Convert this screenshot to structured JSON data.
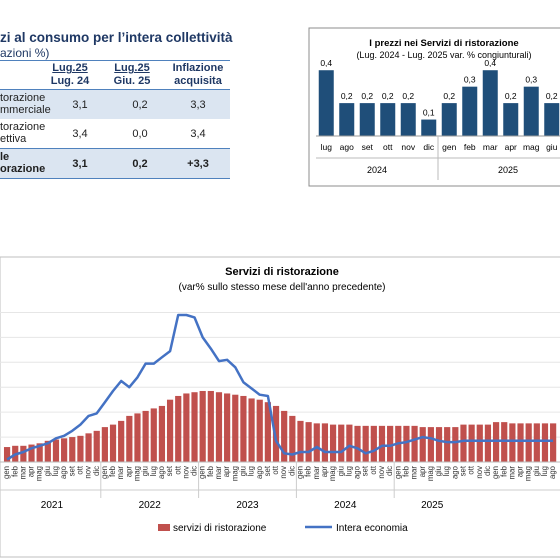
{
  "table": {
    "title": "zi al consumo per l’intera collettività",
    "subtitle": "azioni %)",
    "headers": [
      {
        "l1": "Lug.25",
        "l2": "Lug. 24"
      },
      {
        "l1": "Lug.25",
        "l2": "Giu. 25"
      },
      {
        "l1": "Inflazione",
        "l2": "acquisita"
      }
    ],
    "rows": [
      {
        "l1": "torazione",
        "l2": "mmerciale",
        "v1": "3,1",
        "v2": "0,2",
        "v3": "3,3"
      },
      {
        "l1": "torazione",
        "l2": "ettiva",
        "v1": "3,4",
        "v2": "0,0",
        "v3": "3,4"
      },
      {
        "l1": "le",
        "l2": "orazione",
        "v1": "3,1",
        "v2": "0,2",
        "v3": "+3,3"
      }
    ]
  },
  "chart_data": [
    {
      "type": "bar",
      "title": "I prezzi nei Servizi di ristorazione",
      "subtitle": "(Lug. 2024 - Lug. 2025 var. % congiunturali)",
      "categories": [
        "lug",
        "ago",
        "set",
        "ott",
        "nov",
        "dic",
        "gen",
        "feb",
        "mar",
        "apr",
        "mag",
        "giu"
      ],
      "values": [
        0.4,
        0.2,
        0.2,
        0.2,
        0.2,
        0.1,
        0.2,
        0.3,
        0.4,
        0.2,
        0.3,
        0.2
      ],
      "labels": [
        "0,4",
        "0,2",
        "0,2",
        "0,2",
        "0,2",
        "0,1",
        "0,2",
        "0,3",
        "0,4",
        "0,2",
        "0,3",
        "0,2"
      ],
      "year_labels": [
        "2024",
        "2025"
      ],
      "ylim": [
        0,
        0.45
      ],
      "color": "#1f4e79"
    },
    {
      "type": "bar+line",
      "title": "Servizi di ristorazione",
      "subtitle": "(var% sullo stesso mese dell'anno precedente)",
      "month_labels": [
        "gen",
        "feb",
        "mar",
        "apr",
        "mag",
        "giu",
        "lug",
        "ago",
        "set",
        "ott",
        "nov",
        "dic"
      ],
      "years": [
        "2021",
        "2022",
        "2023",
        "2024",
        "2025"
      ],
      "ylim": [
        0,
        13
      ],
      "grid": true,
      "legend_position": "bottom",
      "series": [
        {
          "name": "servizi di ristorazione",
          "kind": "bar",
          "color": "#c0504d",
          "values": [
            1.2,
            1.3,
            1.3,
            1.4,
            1.5,
            1.7,
            1.8,
            1.9,
            2.0,
            2.1,
            2.3,
            2.5,
            2.8,
            3.0,
            3.3,
            3.7,
            3.9,
            4.1,
            4.3,
            4.5,
            5.0,
            5.3,
            5.5,
            5.6,
            5.7,
            5.7,
            5.6,
            5.5,
            5.4,
            5.3,
            5.1,
            5.0,
            4.8,
            4.5,
            4.1,
            3.7,
            3.3,
            3.2,
            3.1,
            3.1,
            3.0,
            3.0,
            3.0,
            2.9,
            2.9,
            2.9,
            2.9,
            2.9,
            2.9,
            2.9,
            2.9,
            2.8,
            2.8,
            2.8,
            2.8,
            2.8,
            3.0,
            3.0,
            3.0,
            3.0,
            3.2,
            3.2,
            3.1,
            3.1,
            3.1,
            3.1,
            3.1,
            3.1
          ]
        },
        {
          "name": "Intera economia",
          "kind": "line",
          "color": "#4472c4",
          "values": [
            0.2,
            0.6,
            0.8,
            1.1,
            1.3,
            1.5,
            1.9,
            2.1,
            2.5,
            3.0,
            3.7,
            3.9,
            4.8,
            5.7,
            6.5,
            6.0,
            6.8,
            7.9,
            7.9,
            8.4,
            8.9,
            11.8,
            11.8,
            11.6,
            10.0,
            9.1,
            8.1,
            8.2,
            7.6,
            6.4,
            5.9,
            5.4,
            5.3,
            1.7,
            0.7,
            0.6,
            0.8,
            0.8,
            1.2,
            0.8,
            0.8,
            0.8,
            1.3,
            1.1,
            0.7,
            0.9,
            1.3,
            1.3,
            1.5,
            1.6,
            1.8,
            2.0,
            1.9,
            1.7,
            1.6,
            1.6,
            1.7,
            1.7,
            1.7,
            1.7,
            1.7,
            1.7,
            1.7,
            1.7,
            1.7,
            1.7,
            1.7,
            1.7
          ]
        }
      ]
    }
  ]
}
